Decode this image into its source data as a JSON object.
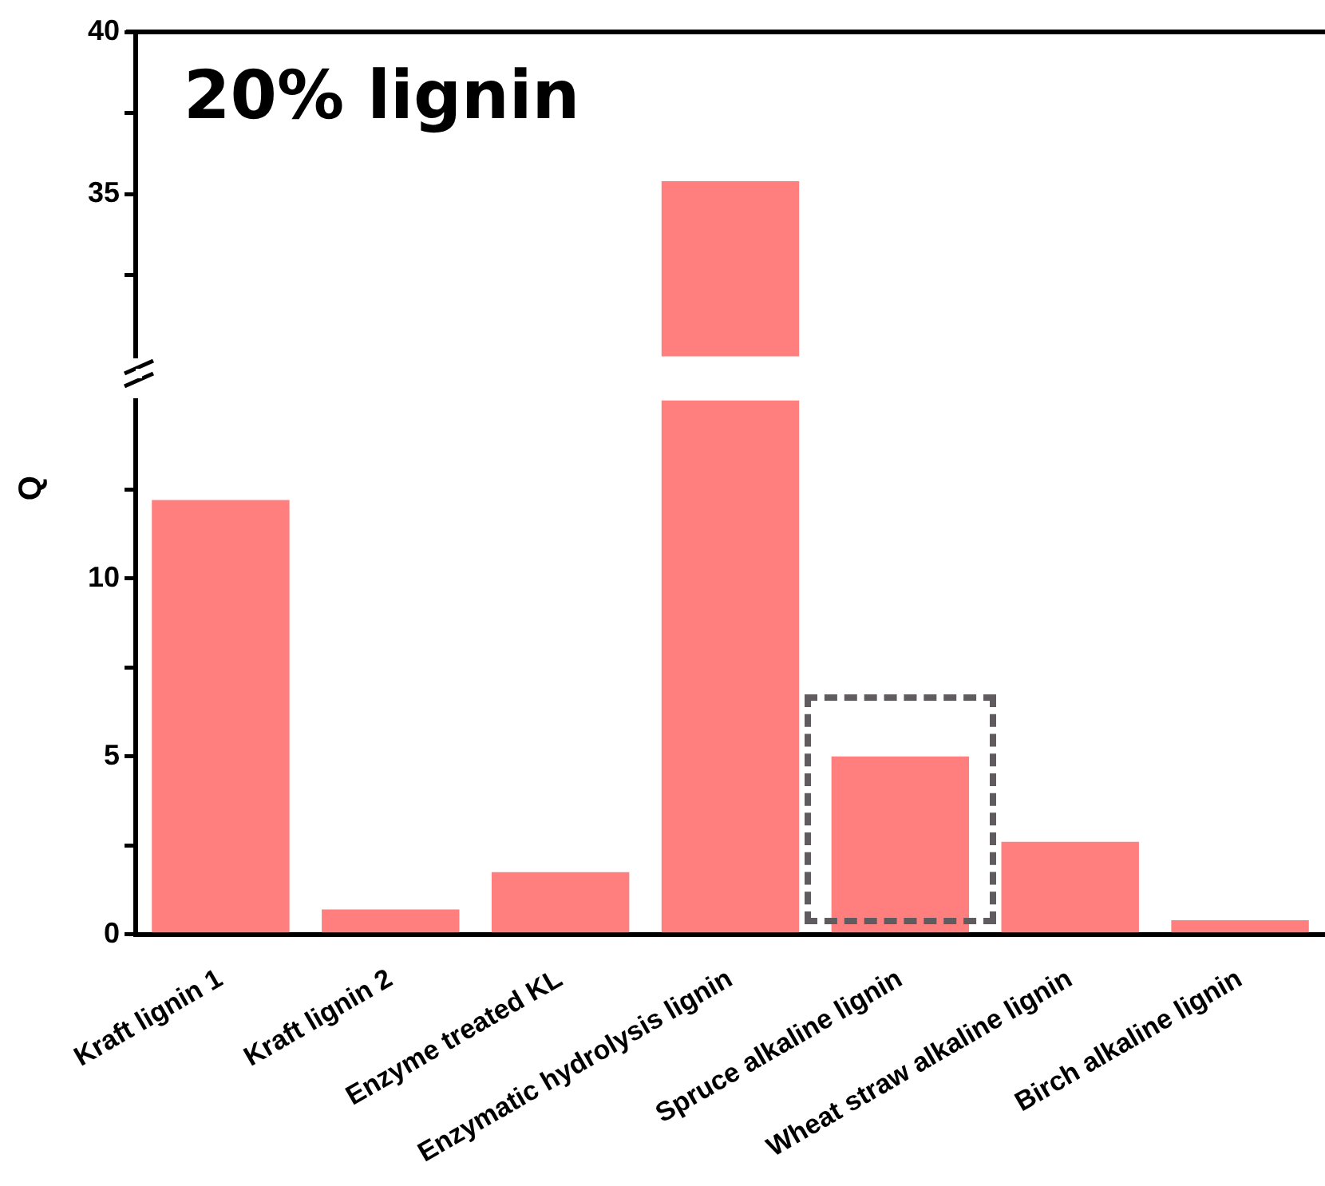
{
  "chart_data": [
    {
      "type": "bar",
      "title": "20% lignin",
      "categories": [
        null,
        null,
        null,
        null,
        null,
        null,
        null
      ],
      "values": [
        null,
        null,
        null,
        35.4,
        null,
        null,
        null
      ],
      "color": "#ff7f7f",
      "ylim": [
        30,
        40
      ],
      "yticks": [
        {
          "value": 32.5,
          "label": null
        },
        35,
        {
          "value": 37.5,
          "label": null
        },
        40
      ],
      "tick_labels": "y",
      "grid": false,
      "legend": false
    },
    {
      "type": "bar",
      "ylabel": "Q",
      "categories": [
        "Kraft lignin 1",
        "Kraft lignin 2",
        "Enzyme treated KL",
        "Enzymatic hydrolysis lignin",
        "Spruce alkaline lignin",
        "Wheat straw alkaline lignin",
        "Birch alkaline lignin"
      ],
      "values": [
        12.2,
        0.7,
        1.75,
        15,
        5.0,
        2.6,
        0.4
      ],
      "color": "#ff7f7f",
      "ylim": [
        0,
        15
      ],
      "yticks": [
        0,
        {
          "value": 2.5,
          "label": null
        },
        5,
        {
          "value": 7.5,
          "label": null
        },
        10,
        {
          "value": 12.5,
          "label": null
        }
      ],
      "grid": false,
      "legend": false
    }
  ]
}
